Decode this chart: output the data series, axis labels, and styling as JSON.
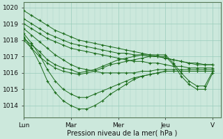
{
  "background_color": "#cce8dc",
  "plot_bg_color": "#cce8dc",
  "line_color": "#1a6b1a",
  "marker": "+",
  "marker_size": 3,
  "marker_lw": 0.8,
  "linewidth": 0.7,
  "xlabel": "Pression niveau de la mer( hPa )",
  "xlabel_fontsize": 7,
  "xtick_labels": [
    "Lun",
    "Mar",
    "Mer",
    "Jeu",
    "V"
  ],
  "xtick_positions": [
    0,
    24,
    48,
    72,
    96
  ],
  "ytick_min": 1014,
  "ytick_max": 1020,
  "xlim": [
    0,
    100
  ],
  "ylim": [
    1013.3,
    1020.3
  ],
  "minor_x_step": 3,
  "series": [
    {
      "x": [
        0,
        4,
        8,
        12,
        16,
        20,
        24,
        28,
        32,
        36,
        40,
        44,
        48,
        52,
        56,
        60,
        64,
        68,
        72,
        76,
        80,
        84,
        88,
        92,
        96
      ],
      "y": [
        1019.8,
        1019.5,
        1019.2,
        1018.9,
        1018.6,
        1018.4,
        1018.2,
        1018.0,
        1017.9,
        1017.8,
        1017.7,
        1017.6,
        1017.5,
        1017.4,
        1017.3,
        1017.2,
        1017.1,
        1017.0,
        1016.9,
        1016.8,
        1016.7,
        1016.6,
        1016.6,
        1016.5,
        1016.5
      ]
    },
    {
      "x": [
        0,
        4,
        8,
        12,
        16,
        20,
        24,
        28,
        32,
        36,
        40,
        44,
        48,
        52,
        56,
        60,
        64,
        68,
        72,
        76,
        80,
        84,
        88,
        92,
        96
      ],
      "y": [
        1019.3,
        1019.0,
        1018.7,
        1018.4,
        1018.2,
        1018.0,
        1017.8,
        1017.7,
        1017.6,
        1017.5,
        1017.4,
        1017.3,
        1017.2,
        1017.2,
        1017.1,
        1017.1,
        1017.0,
        1017.0,
        1016.9,
        1016.8,
        1016.7,
        1016.6,
        1016.5,
        1016.5,
        1016.5
      ]
    },
    {
      "x": [
        0,
        4,
        8,
        12,
        16,
        20,
        24,
        28,
        32,
        36,
        40,
        44,
        48,
        52,
        56,
        60,
        64,
        68,
        72,
        76,
        80,
        84,
        88,
        92,
        96
      ],
      "y": [
        1019.0,
        1018.7,
        1018.4,
        1018.1,
        1017.9,
        1017.7,
        1017.5,
        1017.4,
        1017.3,
        1017.2,
        1017.1,
        1017.0,
        1016.9,
        1016.8,
        1016.7,
        1016.7,
        1016.6,
        1016.6,
        1016.5,
        1016.4,
        1016.4,
        1016.3,
        1016.3,
        1016.3,
        1016.3
      ]
    },
    {
      "x": [
        0,
        4,
        8,
        12,
        16,
        20,
        24,
        28,
        32,
        36,
        40,
        44,
        48,
        52,
        56,
        60,
        64,
        68,
        72,
        76,
        80,
        84,
        88,
        92,
        96
      ],
      "y": [
        1018.7,
        1018.3,
        1017.9,
        1017.5,
        1017.1,
        1016.8,
        1016.5,
        1016.3,
        1016.2,
        1016.1,
        1016.0,
        1016.0,
        1016.0,
        1016.0,
        1016.0,
        1016.1,
        1016.1,
        1016.2,
        1016.2,
        1016.2,
        1016.2,
        1016.2,
        1016.2,
        1016.2,
        1016.2
      ]
    },
    {
      "x": [
        0,
        4,
        8,
        12,
        16,
        20,
        24,
        28,
        32,
        36,
        40,
        44,
        48,
        52,
        56,
        60,
        64,
        68,
        72,
        76,
        80,
        84,
        88,
        92,
        96
      ],
      "y": [
        1018.4,
        1017.8,
        1017.1,
        1016.2,
        1015.5,
        1015.0,
        1014.7,
        1014.5,
        1014.5,
        1014.7,
        1014.9,
        1015.1,
        1015.3,
        1015.5,
        1015.7,
        1015.8,
        1015.9,
        1016.0,
        1016.1,
        1016.1,
        1016.1,
        1016.1,
        1016.1,
        1016.1,
        1016.1
      ]
    },
    {
      "x": [
        0,
        4,
        8,
        12,
        16,
        20,
        24,
        28,
        32,
        36,
        40,
        44,
        48,
        52,
        56,
        60,
        64,
        68,
        72,
        76,
        80,
        84,
        88,
        92,
        96
      ],
      "y": [
        1018.2,
        1017.5,
        1016.6,
        1015.5,
        1014.8,
        1014.3,
        1014.0,
        1013.8,
        1013.8,
        1014.0,
        1014.3,
        1014.7,
        1015.0,
        1015.3,
        1015.6,
        1015.8,
        1015.9,
        1016.0,
        1016.1,
        1016.1,
        1016.1,
        1016.1,
        1016.1,
        1016.1,
        1016.1
      ]
    },
    {
      "x": [
        0,
        4,
        8,
        12,
        16,
        20,
        24,
        28,
        32,
        36,
        40,
        44,
        48,
        52,
        56,
        60,
        64,
        68,
        72,
        76,
        80,
        84,
        88,
        92,
        96
      ],
      "y": [
        1018.0,
        1017.5,
        1017.0,
        1016.6,
        1016.3,
        1016.1,
        1016.0,
        1015.9,
        1016.0,
        1016.1,
        1016.3,
        1016.5,
        1016.6,
        1016.7,
        1016.8,
        1016.9,
        1017.0,
        1017.0,
        1017.0,
        1016.5,
        1015.8,
        1015.3,
        1015.0,
        1015.0,
        1016.0
      ]
    },
    {
      "x": [
        0,
        4,
        8,
        12,
        16,
        20,
        24,
        28,
        32,
        36,
        40,
        44,
        48,
        52,
        56,
        60,
        64,
        68,
        72,
        76,
        80,
        84,
        88,
        92,
        96
      ],
      "y": [
        1018.1,
        1017.7,
        1017.3,
        1016.8,
        1016.5,
        1016.3,
        1016.2,
        1016.0,
        1016.1,
        1016.2,
        1016.4,
        1016.6,
        1016.8,
        1016.9,
        1017.0,
        1017.1,
        1017.1,
        1017.1,
        1017.1,
        1016.6,
        1016.0,
        1015.5,
        1015.2,
        1015.2,
        1016.1
      ]
    }
  ]
}
